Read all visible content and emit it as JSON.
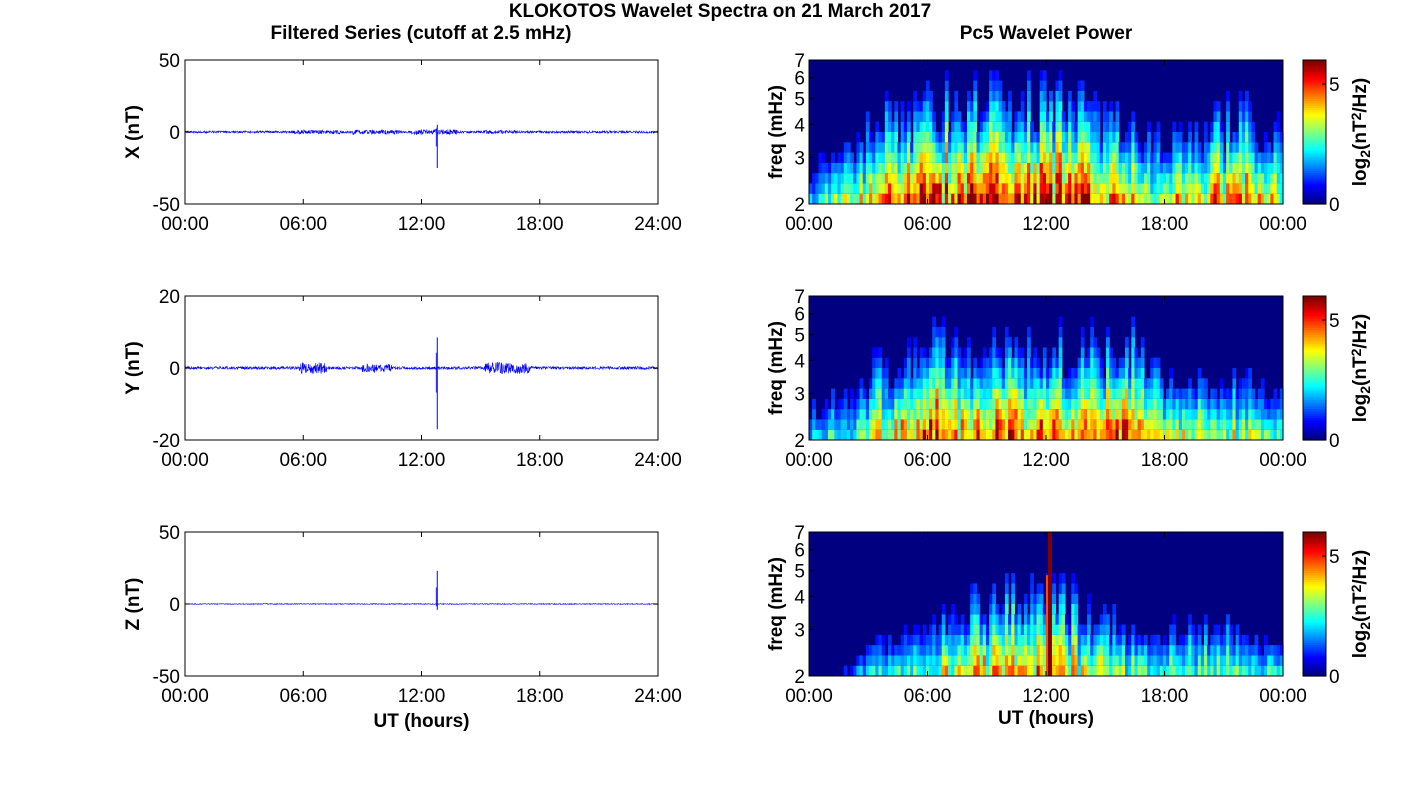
{
  "figure": {
    "title": "KLOKOTOS Wavelet Spectra on 21 March 2017",
    "left_column_title": "Filtered Series (cutoff at 2.5 mHz)",
    "right_column_title": "Pc5 Wavelet Power"
  },
  "colors": {
    "trace": "#0000ff",
    "axes": "#000000",
    "background": "#ffffff",
    "colormap": "jet"
  },
  "chart_data": [
    {
      "type": "line",
      "component": "X",
      "ylabel": "X (nT)",
      "ylim": [
        -50,
        50
      ],
      "yticks": [
        "50",
        "0",
        "-50"
      ],
      "xlim": [
        0,
        24
      ],
      "xticks": [
        "00:00",
        "06:00",
        "12:00",
        "18:00",
        "24:00"
      ],
      "xlabel": "",
      "baseline": 0,
      "noise_amplitude": 0.8,
      "active_intervals": [
        [
          5.5,
          8.0,
          1.4
        ],
        [
          8.5,
          11.0,
          1.6
        ],
        [
          11.5,
          13.8,
          1.8
        ],
        [
          15.0,
          17.0,
          1.2
        ]
      ],
      "spike": {
        "time": 12.8,
        "max": 5,
        "min": -25
      }
    },
    {
      "type": "line",
      "component": "Y",
      "ylabel": "Y (nT)",
      "ylim": [
        -20,
        20
      ],
      "yticks": [
        "20",
        "0",
        "-20"
      ],
      "xlim": [
        0,
        24
      ],
      "xticks": [
        "00:00",
        "06:00",
        "12:00",
        "18:00",
        "24:00"
      ],
      "xlabel": "",
      "baseline": 0,
      "noise_amplitude": 0.4,
      "active_intervals": [
        [
          5.8,
          7.2,
          1.6
        ],
        [
          9.0,
          10.5,
          1.2
        ],
        [
          15.2,
          17.5,
          1.6
        ]
      ],
      "spike": {
        "time": 12.8,
        "max": 8.5,
        "min": -17
      }
    },
    {
      "type": "line",
      "component": "Z",
      "ylabel": "Z (nT)",
      "ylim": [
        -50,
        50
      ],
      "yticks": [
        "50",
        "0",
        "-50"
      ],
      "xlim": [
        0,
        24
      ],
      "xticks": [
        "00:00",
        "06:00",
        "12:00",
        "18:00",
        "24:00"
      ],
      "xlabel": "UT (hours)",
      "baseline": 0,
      "noise_amplitude": 0.3,
      "active_intervals": [],
      "spike": {
        "time": 12.8,
        "max": 23,
        "min": -4
      }
    },
    {
      "type": "heatmap",
      "component": "X",
      "ylabel": "freq (mHz)",
      "ylim": [
        2,
        7
      ],
      "yscale": "log",
      "yticks": [
        "2",
        "3",
        "4",
        "5",
        "6",
        "7"
      ],
      "xlim": [
        0,
        24
      ],
      "xticks": [
        "00:00",
        "06:00",
        "12:00",
        "18:00",
        "00:00"
      ],
      "xlabel": "",
      "colorbar": {
        "label": "log2(nT2/Hz)",
        "range": [
          0,
          6
        ],
        "ticks": [
          "0",
          "5"
        ]
      },
      "activity_profile": [
        [
          0,
          0.3
        ],
        [
          1.5,
          0.55
        ],
        [
          3,
          0.75
        ],
        [
          5,
          0.85
        ],
        [
          8,
          0.95
        ],
        [
          12,
          1.0
        ],
        [
          14,
          0.85
        ],
        [
          17,
          0.65
        ],
        [
          20,
          0.7
        ],
        [
          22,
          0.8
        ],
        [
          24,
          0.65
        ]
      ]
    },
    {
      "type": "heatmap",
      "component": "Y",
      "ylabel": "freq (mHz)",
      "ylim": [
        2,
        7
      ],
      "yscale": "log",
      "yticks": [
        "2",
        "3",
        "4",
        "5",
        "6",
        "7"
      ],
      "xlim": [
        0,
        24
      ],
      "xticks": [
        "00:00",
        "06:00",
        "12:00",
        "18:00",
        "00:00"
      ],
      "xlabel": "",
      "colorbar": {
        "label": "log2(nT2/Hz)",
        "range": [
          0,
          6
        ],
        "ticks": [
          "0",
          "5"
        ]
      },
      "activity_profile": [
        [
          0,
          0.35
        ],
        [
          2,
          0.45
        ],
        [
          3,
          0.6
        ],
        [
          5,
          0.75
        ],
        [
          6.5,
          0.95
        ],
        [
          8,
          0.8
        ],
        [
          10,
          0.95
        ],
        [
          12,
          0.85
        ],
        [
          14,
          0.8
        ],
        [
          16.5,
          0.9
        ],
        [
          18,
          0.6
        ],
        [
          21,
          0.55
        ],
        [
          24,
          0.5
        ]
      ]
    },
    {
      "type": "heatmap",
      "component": "Z",
      "ylabel": "freq (mHz)",
      "ylim": [
        2,
        7
      ],
      "yscale": "log",
      "yticks": [
        "2",
        "3",
        "4",
        "5",
        "6",
        "7"
      ],
      "xlim": [
        0,
        24
      ],
      "xticks": [
        "00:00",
        "06:00",
        "12:00",
        "18:00",
        "00:00"
      ],
      "xlabel": "UT (hours)",
      "colorbar": {
        "label": "log2(nT2/Hz)",
        "range": [
          0,
          6
        ],
        "ticks": [
          "0",
          "5"
        ]
      },
      "activity_profile": [
        [
          0,
          0.05
        ],
        [
          2,
          0.15
        ],
        [
          3,
          0.35
        ],
        [
          5,
          0.4
        ],
        [
          6.5,
          0.6
        ],
        [
          9,
          0.7
        ],
        [
          11,
          0.75
        ],
        [
          13,
          0.7
        ],
        [
          15,
          0.55
        ],
        [
          18,
          0.45
        ],
        [
          21,
          0.5
        ],
        [
          24,
          0.35
        ]
      ],
      "spike": {
        "time": 12.2,
        "value": 6
      }
    }
  ]
}
